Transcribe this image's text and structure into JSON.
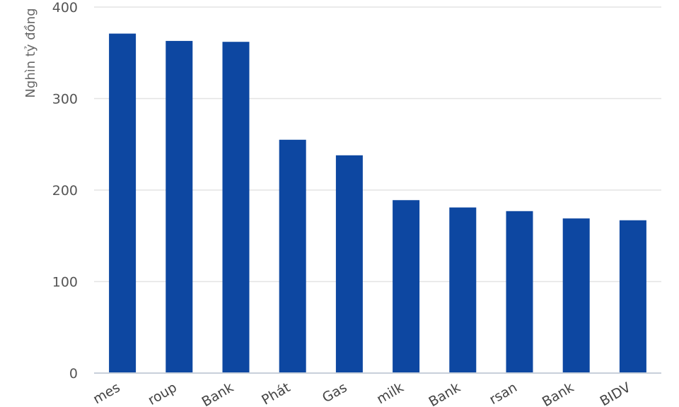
{
  "chart_data": {
    "type": "bar",
    "title": "",
    "xlabel": "",
    "ylabel": "Nghìn tỷ đồng",
    "categories": [
      "mes",
      "roup",
      "Bank",
      "Phát",
      "Gas",
      "milk",
      "Bank",
      "rsan",
      "Bank",
      "BIDV"
    ],
    "values": [
      371,
      363,
      362,
      255,
      238,
      189,
      181,
      177,
      169,
      167
    ],
    "ylim": [
      0,
      400
    ],
    "yticks": [
      0,
      100,
      200,
      300,
      400
    ],
    "grid": true,
    "legend": "none",
    "bar_color": "#0d47a1",
    "grid_color": "#e3e3e3",
    "axis_color": "#c8d0da"
  }
}
